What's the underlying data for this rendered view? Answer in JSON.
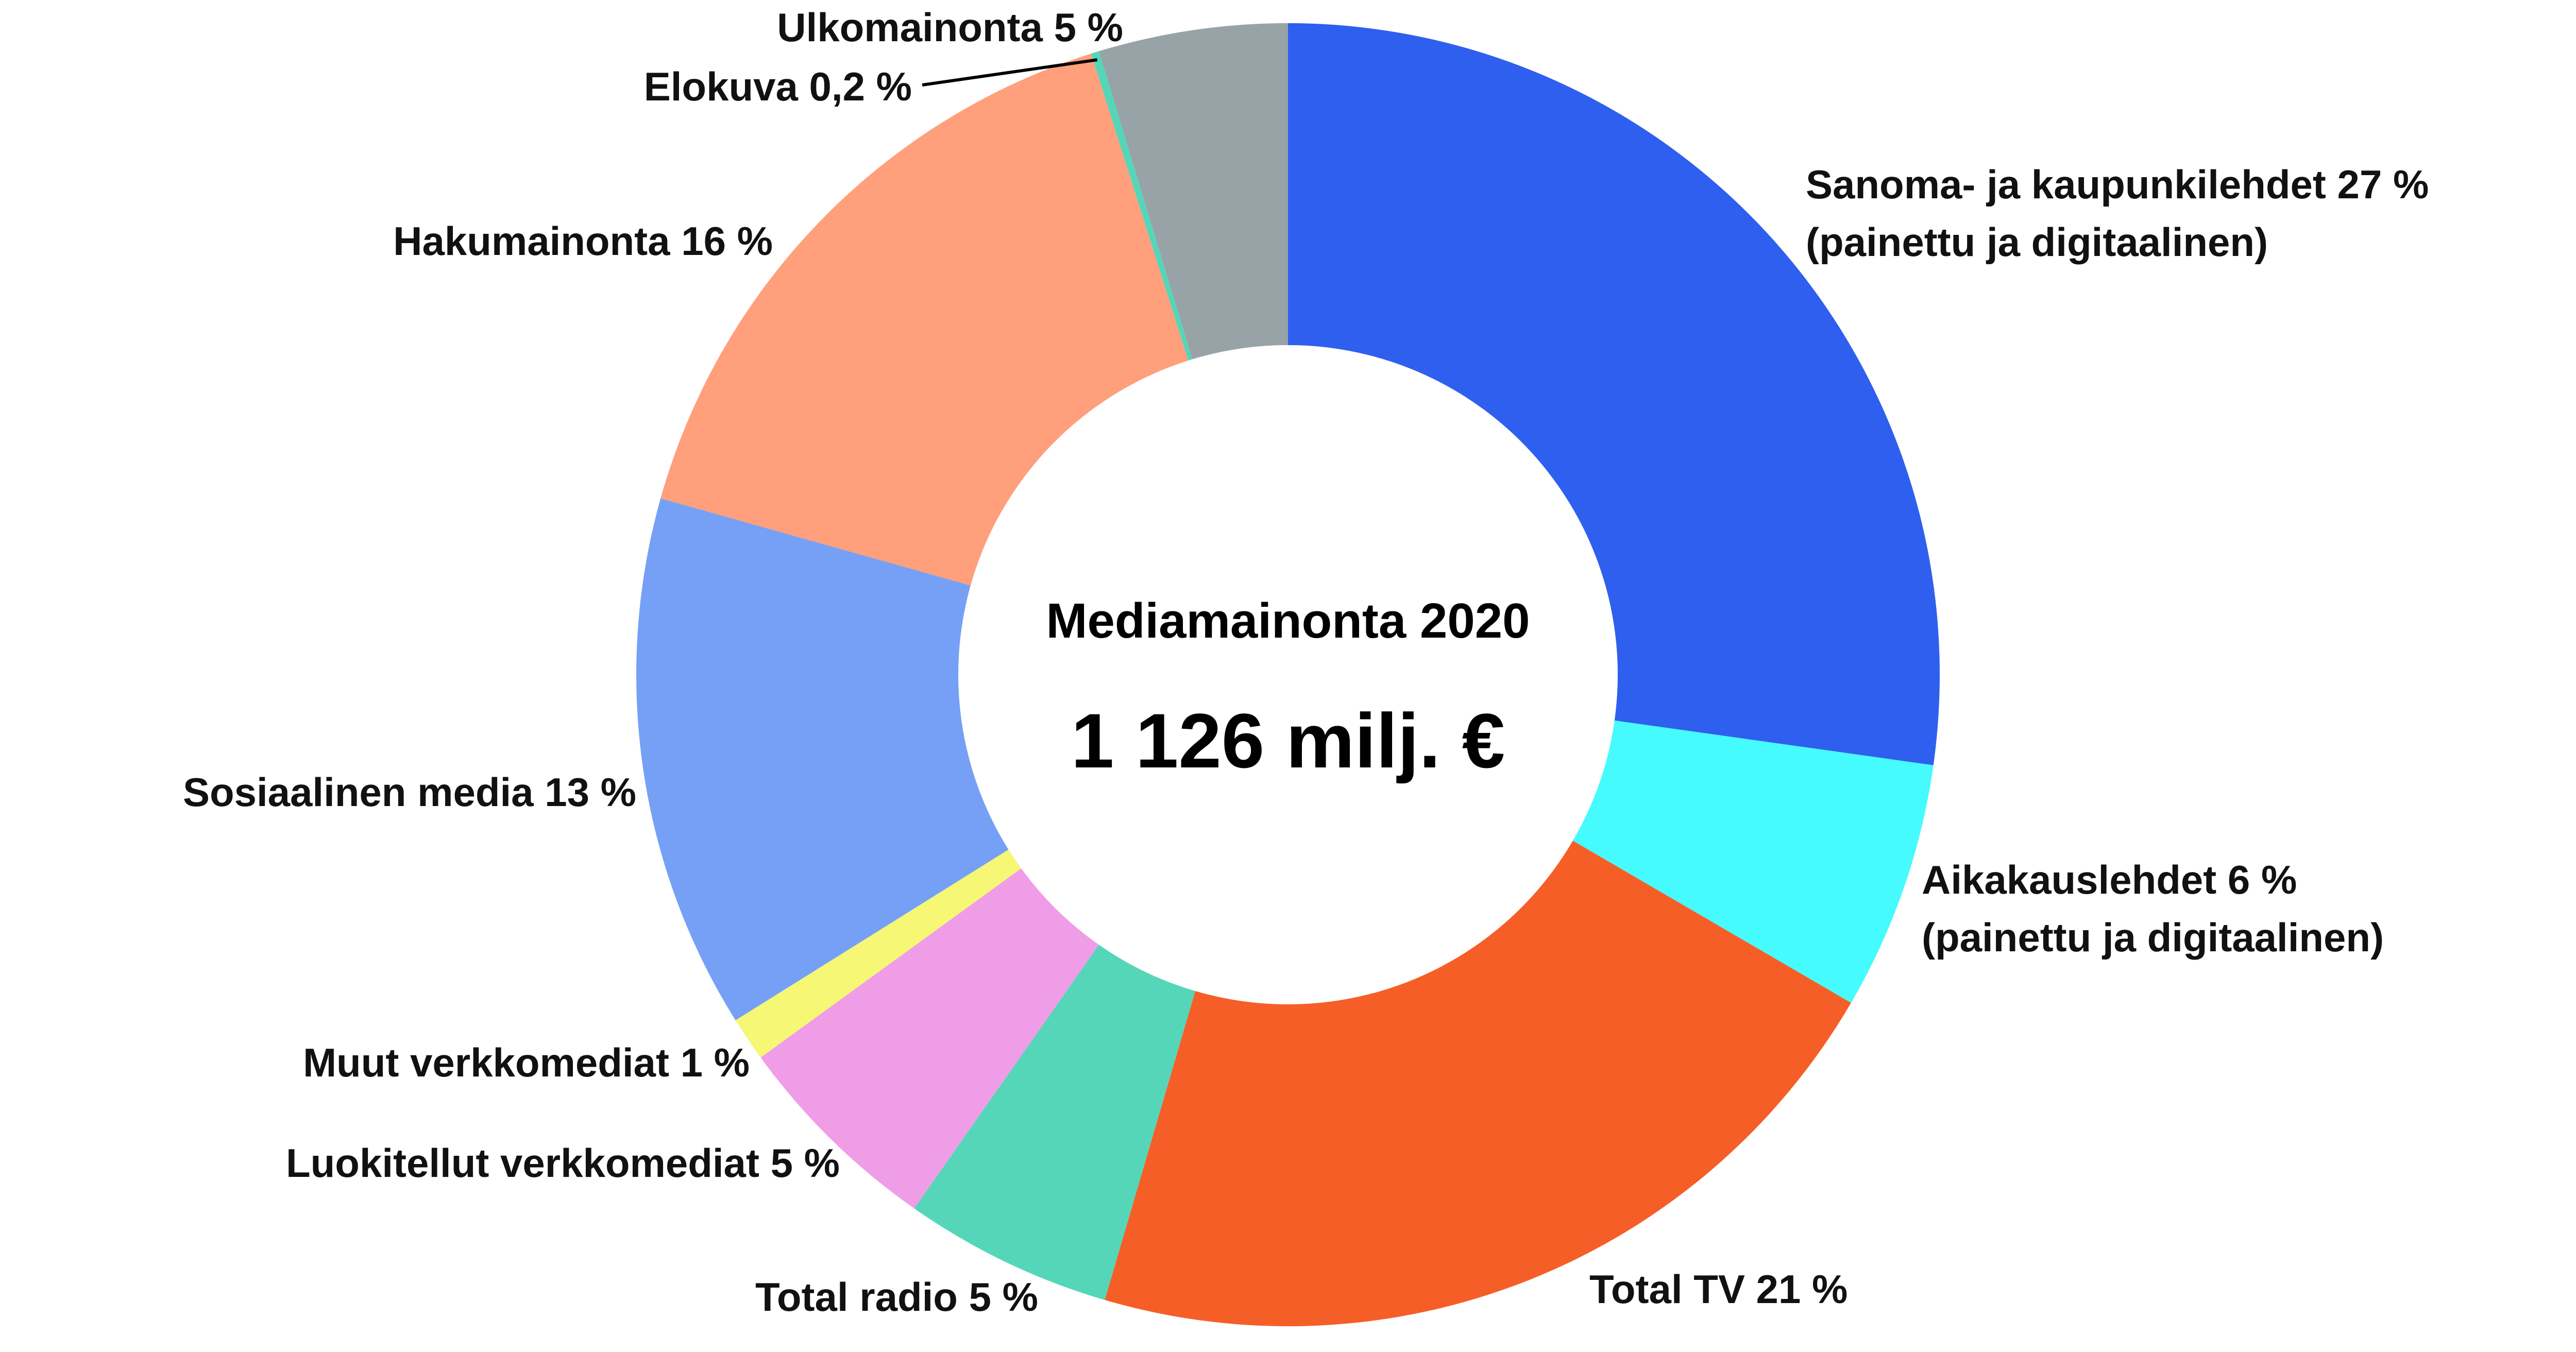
{
  "chart_data": {
    "type": "pie",
    "donut": true,
    "title": "Mediamainonta 2020",
    "center_value": "1 126 milj. €",
    "slices": [
      {
        "name": "sanoma",
        "value": 27.3,
        "color": "#2f5fee",
        "label_lines": [
          "Sanoma- ja kaupunkilehdet 27 %",
          "(painettu ja digitaalinen)"
        ]
      },
      {
        "name": "aikakaus",
        "value": 6.2,
        "color": "#45fbfd",
        "label_lines": [
          "Aikakauslehdet 6 %",
          "(painettu ja digitaalinen)"
        ]
      },
      {
        "name": "tv",
        "value": 21.2,
        "color": "#f65e27",
        "label_lines": [
          "Total TV 21 %"
        ]
      },
      {
        "name": "radio",
        "value": 5.2,
        "color": "#55d6b8",
        "label_lines": [
          "Total radio 5 %"
        ]
      },
      {
        "name": "luokitellut",
        "value": 5.3,
        "color": "#f09de8",
        "label_lines": [
          "Luokitellut verkkomediat 5 %"
        ]
      },
      {
        "name": "muut",
        "value": 1.1,
        "color": "#f5f775",
        "label_lines": [
          "Muut verkkomediat 1 %"
        ]
      },
      {
        "name": "some",
        "value": 13.3,
        "color": "#75a0f5",
        "label_lines": [
          "Sosiaalinen media 13 %"
        ]
      },
      {
        "name": "haku",
        "value": 15.8,
        "color": "#ff9f7c",
        "label_lines": [
          "Hakumainonta 16 %"
        ]
      },
      {
        "name": "elokuva",
        "value": 0.2,
        "color": "#55d6b8",
        "label_lines": [
          "Elokuva 0,2 %"
        ]
      },
      {
        "name": "ulko",
        "value": 4.7,
        "color": "#97a3a7",
        "label_lines": [
          "Ulkomainonta 5 %"
        ]
      }
    ]
  }
}
